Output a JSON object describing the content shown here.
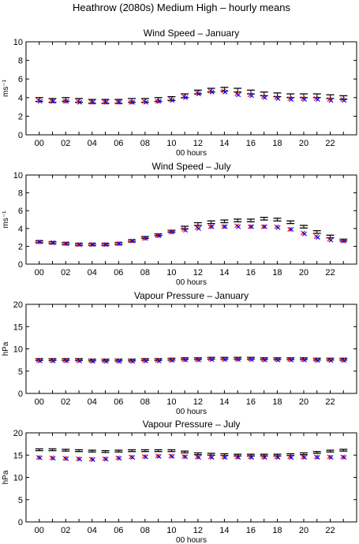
{
  "figure": {
    "title": "Heathrow (2080s) Medium High – hourly means"
  },
  "colors": {
    "errorbar": "#000000",
    "series_red": "#ff0000",
    "series_blue": "#0000ff"
  },
  "chart_data": [
    {
      "type": "scatter",
      "title": "Wind Speed – January",
      "xlabel": "00 hours",
      "ylabel": "ms⁻¹",
      "ylim": [
        0,
        10
      ],
      "yticks": [
        0,
        2,
        4,
        6,
        8,
        10
      ],
      "xtick_labels": [
        "00",
        "02",
        "04",
        "06",
        "08",
        "10",
        "12",
        "14",
        "16",
        "18",
        "20",
        "22"
      ],
      "x": [
        0,
        1,
        2,
        3,
        4,
        5,
        6,
        7,
        8,
        9,
        10,
        11,
        12,
        13,
        14,
        15,
        16,
        17,
        18,
        19,
        20,
        21,
        22,
        23
      ],
      "mean": [
        3.8,
        3.7,
        3.8,
        3.7,
        3.6,
        3.6,
        3.6,
        3.7,
        3.7,
        3.8,
        3.9,
        4.2,
        4.6,
        4.8,
        4.9,
        4.8,
        4.6,
        4.4,
        4.3,
        4.2,
        4.2,
        4.2,
        4.1,
        4.0
      ],
      "err": [
        0.2,
        0.2,
        0.2,
        0.2,
        0.2,
        0.2,
        0.2,
        0.2,
        0.2,
        0.2,
        0.2,
        0.2,
        0.2,
        0.2,
        0.2,
        0.2,
        0.2,
        0.2,
        0.2,
        0.2,
        0.2,
        0.2,
        0.2,
        0.2
      ],
      "series": [
        {
          "values": [
            3.7,
            3.6,
            3.6,
            3.6,
            3.5,
            3.5,
            3.5,
            3.5,
            3.6,
            3.6,
            3.8,
            4.1,
            4.5,
            4.7,
            4.7,
            4.4,
            4.3,
            4.1,
            4.0,
            3.9,
            3.9,
            3.9,
            3.8,
            3.8
          ]
        },
        {
          "values": [
            3.6,
            3.6,
            3.6,
            3.5,
            3.5,
            3.5,
            3.5,
            3.5,
            3.5,
            3.6,
            3.7,
            4.0,
            4.4,
            4.6,
            4.6,
            4.3,
            4.2,
            4.0,
            3.9,
            3.8,
            3.8,
            3.8,
            3.7,
            3.7
          ]
        }
      ]
    },
    {
      "type": "scatter",
      "title": "Wind Speed – July",
      "xlabel": "00 hours",
      "ylabel": "ms⁻¹",
      "ylim": [
        0,
        10
      ],
      "yticks": [
        0,
        2,
        4,
        6,
        8,
        10
      ],
      "xtick_labels": [
        "00",
        "02",
        "04",
        "06",
        "08",
        "10",
        "12",
        "14",
        "16",
        "18",
        "20",
        "22"
      ],
      "x": [
        0,
        1,
        2,
        3,
        4,
        5,
        6,
        7,
        8,
        9,
        10,
        11,
        12,
        13,
        14,
        15,
        16,
        17,
        18,
        19,
        20,
        21,
        22,
        23
      ],
      "mean": [
        2.5,
        2.4,
        2.3,
        2.2,
        2.2,
        2.2,
        2.3,
        2.6,
        3.0,
        3.3,
        3.7,
        4.1,
        4.5,
        4.7,
        4.8,
        4.9,
        4.9,
        5.1,
        5.0,
        4.7,
        4.2,
        3.6,
        3.1,
        2.7
      ],
      "err": [
        0.1,
        0.1,
        0.1,
        0.1,
        0.1,
        0.1,
        0.1,
        0.1,
        0.1,
        0.1,
        0.1,
        0.15,
        0.15,
        0.15,
        0.15,
        0.15,
        0.15,
        0.15,
        0.15,
        0.15,
        0.15,
        0.15,
        0.15,
        0.1
      ],
      "series": [
        {
          "values": [
            2.5,
            2.4,
            2.3,
            2.2,
            2.2,
            2.2,
            2.3,
            2.6,
            2.9,
            3.2,
            3.6,
            3.9,
            4.1,
            4.2,
            4.2,
            4.3,
            4.2,
            4.2,
            4.2,
            3.9,
            3.5,
            3.1,
            2.8,
            2.6
          ]
        },
        {
          "values": [
            2.5,
            2.4,
            2.3,
            2.2,
            2.2,
            2.2,
            2.3,
            2.6,
            2.9,
            3.2,
            3.6,
            3.8,
            4.0,
            4.2,
            4.2,
            4.2,
            4.2,
            4.2,
            4.1,
            3.9,
            3.4,
            3.0,
            2.7,
            2.6
          ]
        }
      ]
    },
    {
      "type": "scatter",
      "title": "Vapour Pressure – January",
      "xlabel": "00 hours",
      "ylabel": "hPa",
      "ylim": [
        0,
        20
      ],
      "yticks": [
        0,
        5,
        10,
        15,
        20
      ],
      "xtick_labels": [
        "00",
        "02",
        "04",
        "06",
        "08",
        "10",
        "12",
        "14",
        "16",
        "18",
        "20",
        "22"
      ],
      "x": [
        0,
        1,
        2,
        3,
        4,
        5,
        6,
        7,
        8,
        9,
        10,
        11,
        12,
        13,
        14,
        15,
        16,
        17,
        18,
        19,
        20,
        21,
        22,
        23
      ],
      "mean": [
        7.6,
        7.6,
        7.6,
        7.6,
        7.5,
        7.5,
        7.5,
        7.5,
        7.6,
        7.6,
        7.7,
        7.8,
        7.8,
        7.9,
        7.9,
        7.9,
        7.9,
        7.8,
        7.8,
        7.8,
        7.8,
        7.7,
        7.7,
        7.7
      ],
      "err": [
        0.2,
        0.2,
        0.2,
        0.2,
        0.2,
        0.2,
        0.2,
        0.2,
        0.2,
        0.2,
        0.2,
        0.2,
        0.2,
        0.2,
        0.2,
        0.2,
        0.2,
        0.2,
        0.2,
        0.2,
        0.2,
        0.2,
        0.2,
        0.2
      ],
      "series": [
        {
          "values": [
            7.4,
            7.4,
            7.4,
            7.4,
            7.3,
            7.3,
            7.3,
            7.3,
            7.4,
            7.4,
            7.5,
            7.6,
            7.6,
            7.7,
            7.7,
            7.7,
            7.7,
            7.6,
            7.6,
            7.6,
            7.6,
            7.5,
            7.5,
            7.5
          ]
        },
        {
          "values": [
            7.3,
            7.3,
            7.3,
            7.3,
            7.2,
            7.2,
            7.2,
            7.2,
            7.3,
            7.3,
            7.4,
            7.5,
            7.5,
            7.6,
            7.6,
            7.6,
            7.6,
            7.5,
            7.5,
            7.5,
            7.5,
            7.4,
            7.4,
            7.4
          ]
        }
      ]
    },
    {
      "type": "scatter",
      "title": "Vapour Pressure – July",
      "xlabel": "00 hours",
      "ylabel": "hPa",
      "ylim": [
        0,
        20
      ],
      "yticks": [
        0,
        5,
        10,
        15,
        20
      ],
      "xtick_labels": [
        "00",
        "02",
        "04",
        "06",
        "08",
        "10",
        "12",
        "14",
        "16",
        "18",
        "20",
        "22"
      ],
      "x": [
        0,
        1,
        2,
        3,
        4,
        5,
        6,
        7,
        8,
        9,
        10,
        11,
        12,
        13,
        14,
        15,
        16,
        17,
        18,
        19,
        20,
        21,
        22,
        23
      ],
      "mean": [
        16.2,
        16.2,
        16.1,
        16.0,
        15.9,
        15.8,
        15.9,
        16.0,
        16.0,
        16.0,
        16.0,
        15.7,
        15.3,
        15.2,
        15.1,
        15.0,
        15.0,
        15.0,
        15.0,
        15.1,
        15.3,
        15.6,
        15.9,
        16.1
      ],
      "err": [
        0.2,
        0.2,
        0.2,
        0.2,
        0.2,
        0.2,
        0.2,
        0.2,
        0.2,
        0.2,
        0.2,
        0.2,
        0.2,
        0.2,
        0.2,
        0.2,
        0.2,
        0.2,
        0.2,
        0.2,
        0.2,
        0.2,
        0.2,
        0.2
      ],
      "series": [
        {
          "values": [
            14.5,
            14.4,
            14.3,
            14.2,
            14.1,
            14.2,
            14.4,
            14.6,
            14.7,
            14.8,
            14.8,
            14.7,
            14.6,
            14.6,
            14.6,
            14.6,
            14.6,
            14.6,
            14.6,
            14.6,
            14.6,
            14.6,
            14.6,
            14.6
          ]
        },
        {
          "values": [
            14.4,
            14.3,
            14.2,
            14.1,
            14.0,
            14.1,
            14.3,
            14.5,
            14.6,
            14.7,
            14.7,
            14.6,
            14.5,
            14.5,
            14.5,
            14.5,
            14.5,
            14.5,
            14.5,
            14.5,
            14.5,
            14.5,
            14.5,
            14.5
          ]
        }
      ]
    }
  ]
}
